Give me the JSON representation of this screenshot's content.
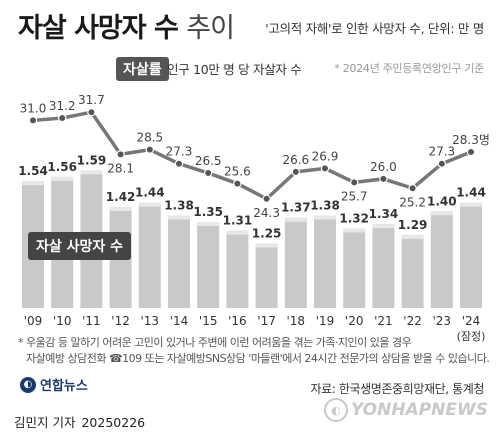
{
  "header": {
    "title_main": "자살 사망자 수",
    "title_suffix": "추이",
    "unit_note": "'고의적 자해'로 인한 사망자 수, 단위: 만 명",
    "basis_note": "* 2024년 주민등록연앙인구 기준"
  },
  "legend": {
    "rate_badge": "자살률",
    "rate_desc": "인구 10만 명 당 자살자 수",
    "bar_label": "자살 사망자 수"
  },
  "chart_data": {
    "type": "bar",
    "categories": [
      "'09",
      "'10",
      "'11",
      "'12",
      "'13",
      "'14",
      "'15",
      "'16",
      "'17",
      "'18",
      "'19",
      "'20",
      "'21",
      "'22",
      "'23",
      "'24"
    ],
    "last_category_note": "(잠정)",
    "series": [
      {
        "name": "자살 사망자 수",
        "type": "bar",
        "values": [
          1.54,
          1.56,
          1.59,
          1.42,
          1.44,
          1.38,
          1.35,
          1.31,
          1.25,
          1.37,
          1.38,
          1.32,
          1.34,
          1.29,
          1.4,
          1.44
        ]
      },
      {
        "name": "자살률",
        "type": "line",
        "values": [
          31.0,
          31.2,
          31.7,
          28.1,
          28.5,
          27.3,
          26.5,
          25.6,
          24.3,
          26.6,
          26.9,
          25.7,
          26.0,
          25.2,
          27.3,
          28.3
        ],
        "last_label_suffix": "명",
        "label_position": [
          "above",
          "above",
          "above",
          "below",
          "above",
          "above",
          "above",
          "above",
          "below",
          "above",
          "above",
          "below",
          "above",
          "below",
          "above",
          "above"
        ]
      }
    ],
    "colors": {
      "bar": "#c9c9c9",
      "bar_top": "#e8e8e8",
      "line": "#777777",
      "marker": "#555555",
      "axis_text": "#333333"
    }
  },
  "footer": {
    "note_line1": "* 우울감 등 말하기 어려운 고민이 있거나 주변에 이런 어려움을 겪는 가족·지인이 있을 경우",
    "note_line2": "자살예방 상담전화 ☎109 또는 자살예방SNS상담 '마들랜'에서 24시간 전문가의 상담을 받을 수 있습니다.",
    "logo_text": "연합뉴스",
    "source": "자료: 한국생명존중희망재단, 통계청",
    "author": "김민지 기자",
    "date": "20250226",
    "watermark": "YONHAPNEWS"
  }
}
